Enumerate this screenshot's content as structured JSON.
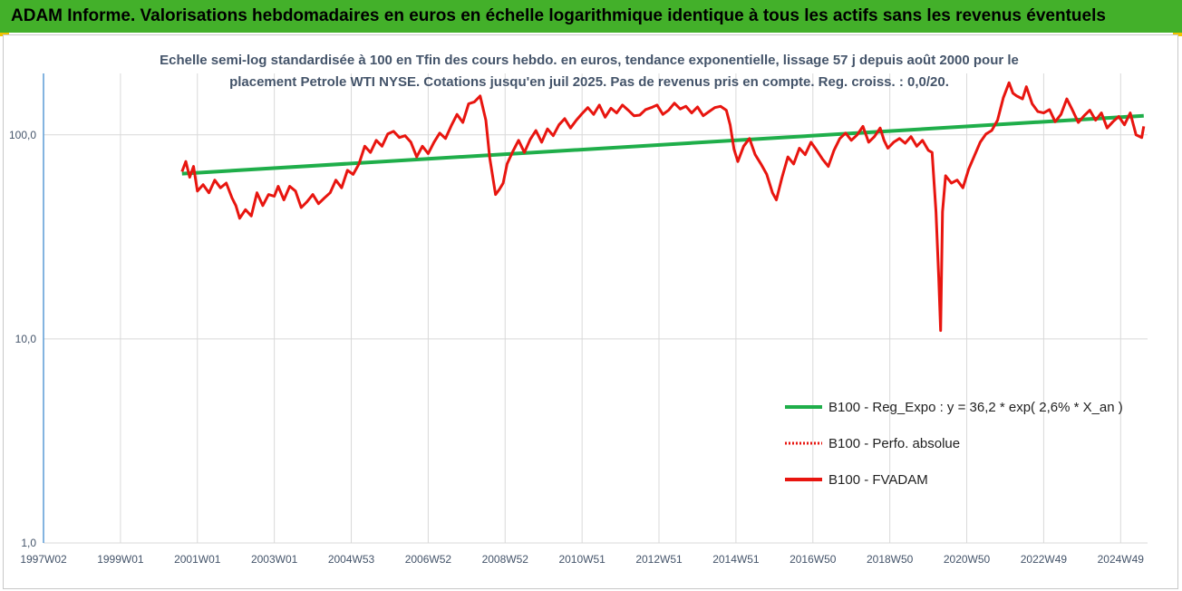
{
  "header": {
    "title": "ADAM Informe. Valorisations hebdomadaires en euros en échelle logarithmique identique à tous les actifs sans les revenus éventuels"
  },
  "colors": {
    "header_bg": "#43b02a",
    "trend": "#1fae4a",
    "perf": "#e8150f",
    "fvadam": "#e8150f",
    "grid": "#d9d9d9",
    "accent_corner": "#f2c200"
  },
  "chart_data": {
    "type": "line",
    "title_lines": [
      "Echelle semi-log standardisée à 100 en Tfin des cours hebdo. en euros, tendance exponentielle, lissage 57 j depuis août 2000 pour le",
      "placement Petrole WTI NYSE. Cotations jusqu'en juil 2025. Pas de revenus pris en compte. Reg. croiss. : 0,0/20."
    ],
    "y_scale": "log",
    "ylim": [
      1,
      200
    ],
    "y_ticks": [
      {
        "value": 1,
        "label": "1,0"
      },
      {
        "value": 10,
        "label": "10,0"
      },
      {
        "value": 100,
        "label": "100,0"
      }
    ],
    "xlim": [
      1997.0,
      2025.7
    ],
    "x_ticks": [
      {
        "value": 1997.0,
        "label": "1997W02"
      },
      {
        "value": 1999.0,
        "label": "1999W01"
      },
      {
        "value": 2001.0,
        "label": "2001W01"
      },
      {
        "value": 2003.0,
        "label": "2003W01"
      },
      {
        "value": 2005.0,
        "label": "2004W53"
      },
      {
        "value": 2007.0,
        "label": "2006W52"
      },
      {
        "value": 2009.0,
        "label": "2008W52"
      },
      {
        "value": 2011.0,
        "label": "2010W51"
      },
      {
        "value": 2013.0,
        "label": "2012W51"
      },
      {
        "value": 2015.0,
        "label": "2014W51"
      },
      {
        "value": 2017.0,
        "label": "2016W50"
      },
      {
        "value": 2019.0,
        "label": "2018W50"
      },
      {
        "value": 2021.0,
        "label": "2020W50"
      },
      {
        "value": 2023.0,
        "label": "2022W49"
      },
      {
        "value": 2025.0,
        "label": "2024W49"
      }
    ],
    "grid": true,
    "legend_position": "bottom-right",
    "series": [
      {
        "name": "B100 - Reg_Expo : y = 36,2 * exp( 2,6% *  X_an )",
        "style": "solid-green",
        "x": [
          2000.6,
          2025.6
        ],
        "y": [
          64.5,
          124
        ]
      },
      {
        "name": "B100 - Perfo. absolue",
        "style": "dotted-red",
        "x": [],
        "y": []
      },
      {
        "name": "B100 - FVADAM",
        "style": "solid-red",
        "x": [
          2000.6,
          2000.7,
          2000.8,
          2000.9,
          2001.0,
          2001.15,
          2001.3,
          2001.45,
          2001.6,
          2001.75,
          2001.9,
          2002.0,
          2002.1,
          2002.25,
          2002.4,
          2002.55,
          2002.7,
          2002.85,
          2003.0,
          2003.1,
          2003.25,
          2003.4,
          2003.55,
          2003.7,
          2003.85,
          2004.0,
          2004.15,
          2004.3,
          2004.45,
          2004.6,
          2004.75,
          2004.9,
          2005.05,
          2005.2,
          2005.35,
          2005.5,
          2005.65,
          2005.8,
          2005.95,
          2006.1,
          2006.25,
          2006.4,
          2006.55,
          2006.7,
          2006.85,
          2007.0,
          2007.15,
          2007.3,
          2007.45,
          2007.6,
          2007.75,
          2007.9,
          2008.05,
          2008.2,
          2008.35,
          2008.5,
          2008.6,
          2008.75,
          2008.85,
          2008.95,
          2009.05,
          2009.2,
          2009.35,
          2009.5,
          2009.65,
          2009.8,
          2009.95,
          2010.1,
          2010.25,
          2010.4,
          2010.55,
          2010.7,
          2010.85,
          2011.0,
          2011.15,
          2011.3,
          2011.45,
          2011.6,
          2011.75,
          2011.9,
          2012.05,
          2012.2,
          2012.35,
          2012.5,
          2012.65,
          2012.8,
          2012.95,
          2013.1,
          2013.25,
          2013.4,
          2013.55,
          2013.7,
          2013.85,
          2014.0,
          2014.15,
          2014.3,
          2014.45,
          2014.6,
          2014.75,
          2014.85,
          2014.95,
          2015.05,
          2015.2,
          2015.35,
          2015.5,
          2015.65,
          2015.8,
          2015.95,
          2016.05,
          2016.2,
          2016.35,
          2016.5,
          2016.65,
          2016.8,
          2016.95,
          2017.1,
          2017.25,
          2017.4,
          2017.55,
          2017.7,
          2017.85,
          2018.0,
          2018.15,
          2018.3,
          2018.45,
          2018.6,
          2018.75,
          2018.85,
          2018.95,
          2019.1,
          2019.25,
          2019.4,
          2019.55,
          2019.7,
          2019.85,
          2020.0,
          2020.1,
          2020.2,
          2020.27,
          2020.32,
          2020.37,
          2020.45,
          2020.6,
          2020.75,
          2020.9,
          2021.05,
          2021.2,
          2021.35,
          2021.5,
          2021.65,
          2021.8,
          2021.95,
          2022.1,
          2022.2,
          2022.3,
          2022.45,
          2022.55,
          2022.7,
          2022.85,
          2023.0,
          2023.15,
          2023.3,
          2023.45,
          2023.6,
          2023.75,
          2023.9,
          2024.05,
          2024.2,
          2024.35,
          2024.5,
          2024.65,
          2024.8,
          2024.95,
          2025.1,
          2025.25,
          2025.4,
          2025.55,
          2025.6
        ],
        "y": [
          66,
          74,
          62,
          70,
          53,
          57,
          52,
          60,
          55,
          58,
          49,
          45,
          39,
          43,
          40,
          52,
          45,
          51,
          50,
          56,
          48,
          56,
          53,
          44,
          47,
          51,
          46,
          49,
          52,
          60,
          55,
          67,
          64,
          72,
          88,
          82,
          94,
          88,
          101,
          104,
          97,
          99,
          92,
          78,
          88,
          81,
          92,
          102,
          96,
          111,
          126,
          115,
          142,
          145,
          155,
          118,
          77,
          51,
          54,
          58,
          72,
          83,
          94,
          82,
          95,
          105,
          92,
          107,
          99,
          112,
          120,
          108,
          118,
          127,
          136,
          126,
          140,
          122,
          135,
          128,
          140,
          132,
          124,
          125,
          133,
          136,
          140,
          126,
          132,
          143,
          134,
          138,
          128,
          137,
          124,
          130,
          136,
          138,
          132,
          112,
          85,
          74,
          88,
          96,
          80,
          72,
          64,
          52,
          48,
          62,
          78,
          72,
          86,
          80,
          92,
          84,
          76,
          70,
          84,
          96,
          102,
          94,
          100,
          110,
          92,
          98,
          108,
          94,
          86,
          92,
          96,
          91,
          98,
          88,
          94,
          84,
          82,
          42,
          20,
          11,
          42,
          63,
          58,
          60,
          55,
          68,
          79,
          92,
          101,
          105,
          118,
          152,
          180,
          160,
          155,
          150,
          172,
          142,
          130,
          128,
          133,
          116,
          126,
          150,
          132,
          115,
          124,
          132,
          118,
          128,
          108,
          116,
          123,
          112,
          128,
          100,
          97,
          110
        ]
      }
    ]
  }
}
